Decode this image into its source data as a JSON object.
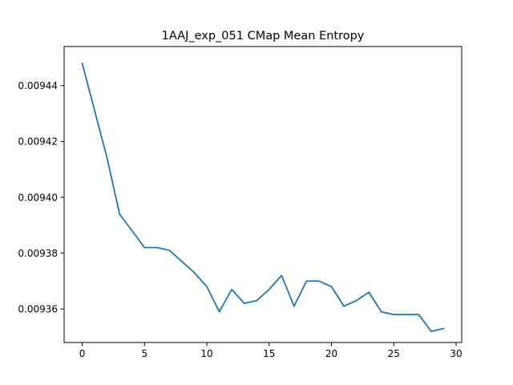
{
  "chart_data": {
    "type": "line",
    "title": "1AAJ_exp_051 CMap Mean Entropy",
    "xlabel": "",
    "ylabel": "",
    "xlim": [
      -1.45,
      30.45
    ],
    "ylim": [
      0.009348,
      0.009454
    ],
    "grid": false,
    "x_ticks": [
      0,
      5,
      10,
      15,
      20,
      25,
      30
    ],
    "x_tick_labels": [
      "0",
      "5",
      "10",
      "15",
      "20",
      "25",
      "30"
    ],
    "y_ticks": [
      0.00936,
      0.00938,
      0.0094,
      0.00942,
      0.00944
    ],
    "y_tick_labels": [
      "0.00936",
      "0.00938",
      "0.00940",
      "0.00942",
      "0.00944"
    ],
    "series": [
      {
        "color": "#1f77b4",
        "x": [
          0,
          1,
          2,
          3,
          4,
          5,
          6,
          7,
          8,
          9,
          10,
          11,
          12,
          13,
          14,
          15,
          16,
          17,
          18,
          19,
          20,
          21,
          22,
          23,
          24,
          25,
          26,
          27,
          28,
          29
        ],
        "y": [
          0.009448,
          0.009431,
          0.009414,
          0.009394,
          0.009388,
          0.009382,
          0.009382,
          0.009381,
          0.009377,
          0.009373,
          0.009368,
          0.009359,
          0.009367,
          0.009362,
          0.009363,
          0.009367,
          0.009372,
          0.009361,
          0.00937,
          0.00937,
          0.009368,
          0.009361,
          0.009363,
          0.009366,
          0.009359,
          0.009358,
          0.009358,
          0.009358,
          0.009352,
          0.009353
        ]
      }
    ]
  }
}
